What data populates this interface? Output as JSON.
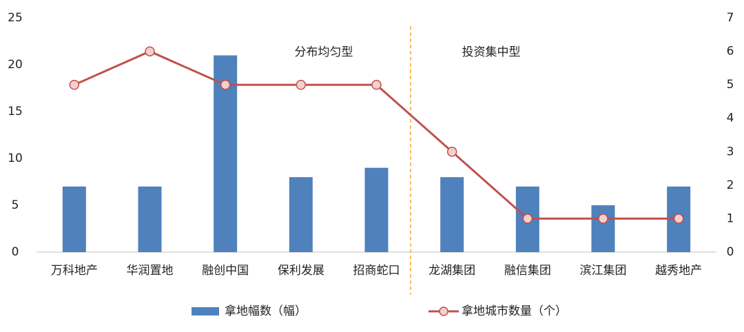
{
  "chart_data": {
    "type": "bar",
    "categories": [
      "万科地产",
      "华润置地",
      "融创中国",
      "保利发展",
      "招商蛇口",
      "龙湖集团",
      "融信集团",
      "滨江集团",
      "越秀地产"
    ],
    "series": [
      {
        "name": "拿地幅数（幅）",
        "type": "bar",
        "color": "#4f81bd",
        "values": [
          7,
          7,
          21,
          8,
          9,
          8,
          7,
          5,
          7
        ]
      },
      {
        "name": "拿地城市数量（个）",
        "type": "line",
        "axis": "y2",
        "color": "#c0504d",
        "marker_fill": "#f2d0cf",
        "values": [
          5,
          6,
          5,
          5,
          5,
          3,
          1,
          1,
          1
        ]
      }
    ],
    "ylim": [
      0,
      25
    ],
    "yticks": [
      0,
      5,
      10,
      15,
      20,
      25
    ],
    "y2lim": [
      0,
      7
    ],
    "y2ticks": [
      0,
      1,
      2,
      3,
      4,
      5,
      6,
      7
    ],
    "annotations": [
      "分布均匀型",
      "投资集中型"
    ],
    "grid": false
  }
}
